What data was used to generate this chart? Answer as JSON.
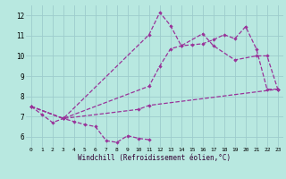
{
  "background_color": "#b8e8e0",
  "grid_color": "#9dcccc",
  "line_color": "#993399",
  "xlabel": "Windchill (Refroidissement éolien,°C)",
  "ylim": [
    5.5,
    12.5
  ],
  "xlim": [
    -0.5,
    23.5
  ],
  "yticks": [
    6,
    7,
    8,
    9,
    10,
    11,
    12
  ],
  "xticks": [
    0,
    1,
    2,
    3,
    4,
    5,
    6,
    7,
    8,
    9,
    10,
    11,
    12,
    13,
    14,
    15,
    16,
    17,
    18,
    19,
    20,
    21,
    22,
    23
  ],
  "line1_x": [
    0,
    1,
    2,
    3,
    4,
    5,
    6,
    7,
    8,
    9,
    10,
    11
  ],
  "line1_y": [
    7.5,
    7.1,
    6.7,
    6.9,
    6.75,
    6.6,
    6.5,
    5.8,
    5.72,
    6.05,
    5.92,
    5.85
  ],
  "line2_x": [
    0,
    3,
    11,
    12,
    13,
    14,
    16,
    17,
    19,
    21,
    22,
    23
  ],
  "line2_y": [
    7.5,
    6.9,
    11.05,
    12.15,
    11.5,
    10.5,
    11.1,
    10.5,
    9.8,
    10.0,
    10.0,
    8.35
  ],
  "line3_x": [
    0,
    3,
    11,
    12,
    13,
    14,
    15,
    16,
    17,
    18,
    19,
    20,
    21,
    22,
    23
  ],
  "line3_y": [
    7.5,
    6.9,
    8.5,
    9.5,
    10.35,
    10.5,
    10.55,
    10.6,
    10.8,
    11.05,
    10.85,
    11.45,
    10.35,
    8.35,
    8.35
  ],
  "line4_x": [
    0,
    3,
    10,
    11,
    23
  ],
  "line4_y": [
    7.5,
    6.9,
    7.35,
    7.55,
    8.35
  ],
  "figwidth": 3.2,
  "figheight": 2.0,
  "dpi": 100
}
